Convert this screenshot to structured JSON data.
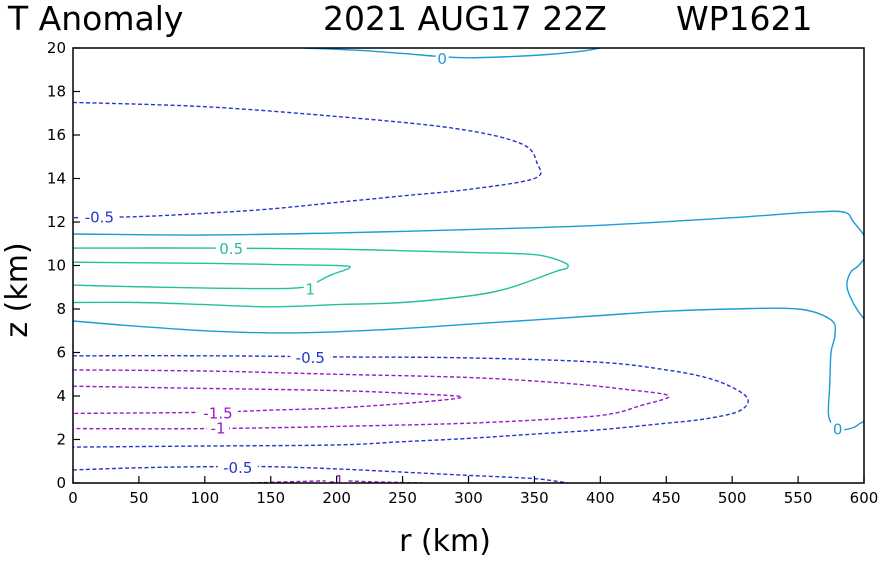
{
  "header": {
    "variable": "T Anomaly",
    "datetime": "2021 AUG17 22Z",
    "storm_id": "WP1621"
  },
  "chart_data": {
    "type": "contour",
    "xlabel": "r (km)",
    "ylabel": "z (km)",
    "xlim": [
      0,
      600
    ],
    "ylim": [
      0,
      20
    ],
    "xticks": [
      0,
      50,
      100,
      150,
      200,
      250,
      300,
      350,
      400,
      450,
      500,
      550,
      600
    ],
    "yticks": [
      0,
      2,
      4,
      6,
      8,
      10,
      12,
      14,
      16,
      18,
      20
    ],
    "grid": false,
    "legend": "none",
    "colors": {
      "positive_1": "#20c0a0",
      "positive_0_5": "#20c0a0",
      "zero": "#1e9bd7",
      "negative_0_5": "#2535cc",
      "negative_1": "#9918c8",
      "negative_1_5": "#9918c8"
    },
    "contours": [
      {
        "level": 0,
        "color": "#1e9bd7",
        "dash": false,
        "points": [
          [
            175,
            20
          ],
          [
            215,
            19.9
          ],
          [
            250,
            19.75
          ],
          [
            280,
            19.6
          ],
          [
            300,
            19.55
          ],
          [
            330,
            19.6
          ],
          [
            360,
            19.7
          ],
          [
            385,
            19.85
          ],
          [
            400,
            20
          ]
        ],
        "label": {
          "text": "0",
          "at": [
            280,
            19.5
          ]
        }
      },
      {
        "level": 0,
        "color": "#1e9bd7",
        "dash": false,
        "points": [
          [
            0,
            11.45
          ],
          [
            100,
            11.4
          ],
          [
            200,
            11.5
          ],
          [
            300,
            11.65
          ],
          [
            400,
            11.85
          ],
          [
            500,
            12.2
          ],
          [
            560,
            12.45
          ],
          [
            585,
            12.45
          ],
          [
            592,
            12.0
          ],
          [
            602,
            11.2
          ],
          [
            603,
            10.6
          ],
          [
            596,
            10.0
          ],
          [
            590,
            9.7
          ],
          [
            587,
            9.1
          ],
          [
            590,
            8.5
          ],
          [
            598,
            7.7
          ],
          [
            610,
            7.0
          ],
          [
            630,
            6.8
          ]
        ],
        "label": null
      },
      {
        "level": 0,
        "color": "#1e9bd7",
        "dash": false,
        "points": [
          [
            0,
            7.45
          ],
          [
            50,
            7.2
          ],
          [
            100,
            7.0
          ],
          [
            150,
            6.9
          ],
          [
            200,
            6.95
          ],
          [
            250,
            7.1
          ],
          [
            300,
            7.3
          ],
          [
            350,
            7.5
          ],
          [
            400,
            7.7
          ],
          [
            450,
            7.9
          ],
          [
            500,
            8.0
          ],
          [
            550,
            8.0
          ],
          [
            575,
            7.5
          ],
          [
            578,
            6.8
          ],
          [
            575,
            6.0
          ],
          [
            574,
            4.5
          ],
          [
            573,
            3.2
          ],
          [
            576,
            2.7
          ],
          [
            582,
            2.45
          ],
          [
            592,
            2.55
          ],
          [
            602,
            2.85
          ],
          [
            630,
            3.0
          ]
        ],
        "label": {
          "text": "0",
          "at": [
            580,
            2.45
          ]
        }
      },
      {
        "level": 0.5,
        "color": "#20c0a0",
        "dash": false,
        "points": [
          [
            0,
            10.8
          ],
          [
            100,
            10.8
          ],
          [
            200,
            10.75
          ],
          [
            300,
            10.6
          ],
          [
            350,
            10.5
          ],
          [
            372,
            10.15
          ],
          [
            375,
            9.9
          ],
          [
            365,
            9.7
          ],
          [
            330,
            8.95
          ],
          [
            300,
            8.6
          ],
          [
            250,
            8.3
          ],
          [
            200,
            8.2
          ],
          [
            150,
            8.1
          ],
          [
            100,
            8.2
          ],
          [
            50,
            8.3
          ],
          [
            0,
            8.3
          ]
        ],
        "label": {
          "text": "0.5",
          "at": [
            120,
            10.75
          ]
        }
      },
      {
        "level": 1,
        "color": "#20c0a0",
        "dash": false,
        "points": [
          [
            0,
            10.15
          ],
          [
            100,
            10.1
          ],
          [
            150,
            10.05
          ],
          [
            200,
            10.0
          ],
          [
            210,
            9.9
          ],
          [
            195,
            9.55
          ],
          [
            180,
            9.1
          ],
          [
            165,
            8.95
          ],
          [
            120,
            8.95
          ],
          [
            70,
            9.0
          ],
          [
            30,
            9.05
          ],
          [
            0,
            9.1
          ]
        ],
        "label": {
          "text": "1",
          "at": [
            180,
            8.9
          ]
        }
      },
      {
        "level": -0.5,
        "color": "#2535cc",
        "dash": true,
        "points": [
          [
            0,
            17.5
          ],
          [
            100,
            17.3
          ],
          [
            200,
            16.85
          ],
          [
            290,
            16.3
          ],
          [
            340,
            15.6
          ],
          [
            352,
            14.7
          ],
          [
            350,
            14.0
          ],
          [
            300,
            13.5
          ],
          [
            250,
            13.2
          ],
          [
            200,
            12.9
          ],
          [
            150,
            12.6
          ],
          [
            100,
            12.4
          ],
          [
            50,
            12.25
          ],
          [
            0,
            12.2
          ]
        ],
        "label": {
          "text": "-0.5",
          "at": [
            20,
            12.2
          ]
        }
      },
      {
        "level": -0.5,
        "color": "#2535cc",
        "dash": true,
        "points": [
          [
            0,
            5.85
          ],
          [
            100,
            5.85
          ],
          [
            200,
            5.8
          ],
          [
            300,
            5.75
          ],
          [
            400,
            5.55
          ],
          [
            450,
            5.2
          ],
          [
            480,
            4.85
          ],
          [
            500,
            4.4
          ],
          [
            512,
            3.85
          ],
          [
            505,
            3.3
          ],
          [
            480,
            2.95
          ],
          [
            450,
            2.75
          ],
          [
            400,
            2.45
          ],
          [
            350,
            2.25
          ],
          [
            300,
            2.05
          ],
          [
            250,
            1.9
          ],
          [
            200,
            1.75
          ],
          [
            100,
            1.7
          ],
          [
            0,
            1.65
          ]
        ],
        "label": {
          "text": "-0.5",
          "at": [
            180,
            5.75
          ]
        }
      },
      {
        "level": -0.5,
        "color": "#2535cc",
        "dash": true,
        "points": [
          [
            0,
            0.6
          ],
          [
            50,
            0.7
          ],
          [
            100,
            0.75
          ],
          [
            150,
            0.75
          ],
          [
            200,
            0.65
          ],
          [
            250,
            0.5
          ],
          [
            300,
            0.35
          ],
          [
            350,
            0.2
          ],
          [
            375,
            0.0
          ]
        ],
        "label": {
          "text": "-0.5",
          "at": [
            125,
            0.7
          ]
        }
      },
      {
        "level": -1,
        "color": "#9918c8",
        "dash": true,
        "points": [
          [
            0,
            5.2
          ],
          [
            100,
            5.15
          ],
          [
            200,
            5.0
          ],
          [
            300,
            4.85
          ],
          [
            370,
            4.6
          ],
          [
            420,
            4.3
          ],
          [
            452,
            4.0
          ],
          [
            430,
            3.55
          ],
          [
            410,
            3.2
          ],
          [
            380,
            3.0
          ],
          [
            300,
            2.75
          ],
          [
            200,
            2.6
          ],
          [
            100,
            2.5
          ],
          [
            0,
            2.5
          ]
        ],
        "label": {
          "text": "-1",
          "at": [
            110,
            2.5
          ]
        }
      },
      {
        "level": -1,
        "color": "#9918c8",
        "dash": true,
        "points": [
          [
            135,
            0.0
          ],
          [
            160,
            0.05
          ],
          [
            200,
            0.1
          ],
          [
            230,
            0.05
          ],
          [
            265,
            0.0
          ]
        ],
        "label": {
          "text": "-1",
          "at": [
            200,
            0.1
          ]
        }
      },
      {
        "level": -1.5,
        "color": "#9918c8",
        "dash": true,
        "points": [
          [
            0,
            4.45
          ],
          [
            100,
            4.35
          ],
          [
            200,
            4.25
          ],
          [
            260,
            4.1
          ],
          [
            295,
            3.95
          ],
          [
            260,
            3.7
          ],
          [
            200,
            3.45
          ],
          [
            150,
            3.35
          ],
          [
            100,
            3.25
          ],
          [
            0,
            3.2
          ]
        ],
        "label": {
          "text": "-1.5",
          "at": [
            110,
            3.2
          ]
        }
      }
    ]
  }
}
